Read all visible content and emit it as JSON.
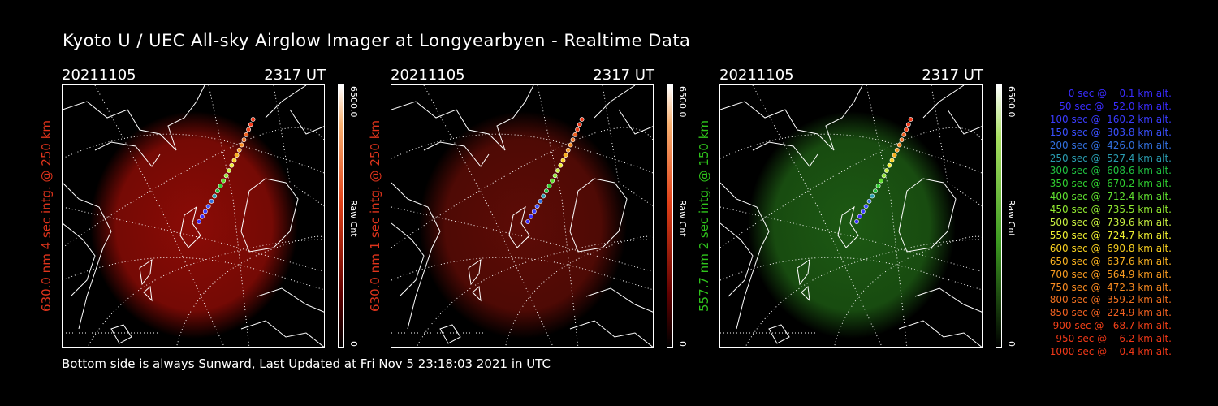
{
  "title": "Kyoto U / UEC All-sky Airglow Imager at Longyearbyen - Realtime Data",
  "footer": "Bottom side is always Sunward, Last Updated at Fri Nov  5 23:18:03 2021 in UTC",
  "panels": [
    {
      "date": "20211105",
      "time": "2317 UT",
      "ylabel": "630.0 nm 4 sec intg. @ 250 km",
      "ylabel_color": "#e0341c",
      "cbar_max": "6500.0",
      "cbar_min": "0",
      "cbar_unit": "Raw Cnt",
      "tint": "red",
      "glow_brightness": 0.55
    },
    {
      "date": "20211105",
      "time": "2317 UT",
      "ylabel": "630.0 nm 1 sec intg. @ 250 km",
      "ylabel_color": "#e0341c",
      "cbar_max": "6500.0",
      "cbar_min": "0",
      "cbar_unit": "Raw Cnt",
      "tint": "red",
      "glow_brightness": 0.15
    },
    {
      "date": "20211105",
      "time": "2317 UT",
      "ylabel": "557.7 nm 2 sec intg. @ 150 km",
      "ylabel_color": "#2fc41c",
      "cbar_max": "6500.0",
      "cbar_min": "0",
      "cbar_unit": "Raw Cnt",
      "tint": "green",
      "glow_brightness": 0.3
    }
  ],
  "legend": [
    {
      "text": "0 sec @    0.1 km alt.",
      "color": "#3a2cff"
    },
    {
      "text": "50 sec @   52.0 km alt.",
      "color": "#3a2cff"
    },
    {
      "text": "100 sec @  160.2 km alt.",
      "color": "#3a3cff"
    },
    {
      "text": "150 sec @  303.8 km alt.",
      "color": "#3a50ff"
    },
    {
      "text": "200 sec @  426.0 km alt.",
      "color": "#3270e0"
    },
    {
      "text": "250 sec @  527.4 km alt.",
      "color": "#2a9cb0"
    },
    {
      "text": "300 sec @  608.6 km alt.",
      "color": "#20c040"
    },
    {
      "text": "350 sec @  670.2 km alt.",
      "color": "#30d030"
    },
    {
      "text": "400 sec @  712.4 km alt.",
      "color": "#60e030"
    },
    {
      "text": "450 sec @  735.5 km alt.",
      "color": "#90e830"
    },
    {
      "text": "500 sec @  739.6 km alt.",
      "color": "#c8f040"
    },
    {
      "text": "550 sec @  724.7 km alt.",
      "color": "#f0f030"
    },
    {
      "text": "600 sec @  690.8 km alt.",
      "color": "#f8d020"
    },
    {
      "text": "650 sec @  637.6 km alt.",
      "color": "#f8b020"
    },
    {
      "text": "700 sec @  564.9 km alt.",
      "color": "#f89a20"
    },
    {
      "text": "750 sec @  472.3 km alt.",
      "color": "#f88a20"
    },
    {
      "text": "800 sec @  359.2 km alt.",
      "color": "#f07020"
    },
    {
      "text": "850 sec @  224.9 km alt.",
      "color": "#f06020"
    },
    {
      "text": "900 sec @   68.7 km alt.",
      "color": "#f04018"
    },
    {
      "text": "950 sec @    6.2 km alt.",
      "color": "#f03818"
    },
    {
      "text": "1000 sec @    0.4 km alt.",
      "color": "#f03818"
    }
  ]
}
